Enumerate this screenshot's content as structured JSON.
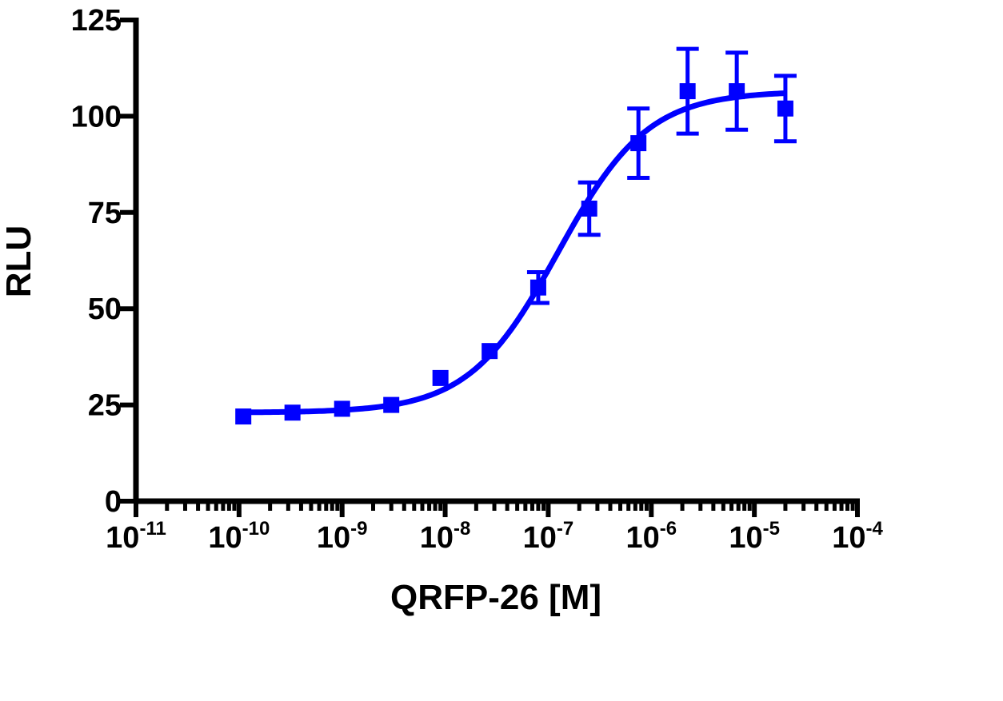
{
  "chart_data": {
    "type": "scatter",
    "xlabel": "QRFP-26 [M]",
    "ylabel": "RLU",
    "xscale": "log",
    "xlim": [
      1e-11,
      0.0001
    ],
    "ylim": [
      0,
      125
    ],
    "grid": false,
    "legend": "none",
    "y_ticks": [
      {
        "value": 0,
        "label": "0"
      },
      {
        "value": 25,
        "label": "25"
      },
      {
        "value": 50,
        "label": "50"
      },
      {
        "value": 75,
        "label": "75"
      },
      {
        "value": 100,
        "label": "100"
      },
      {
        "value": 125,
        "label": "125"
      }
    ],
    "x_ticks": [
      {
        "value": 1e-11,
        "base": "10",
        "exp": "-11"
      },
      {
        "value": 1e-10,
        "base": "10",
        "exp": "-10"
      },
      {
        "value": 1e-09,
        "base": "10",
        "exp": "-9"
      },
      {
        "value": 1e-08,
        "base": "10",
        "exp": "-8"
      },
      {
        "value": 1e-07,
        "base": "10",
        "exp": "-7"
      },
      {
        "value": 1e-06,
        "base": "10",
        "exp": "-6"
      },
      {
        "value": 1e-05,
        "base": "10",
        "exp": "-5"
      },
      {
        "value": 0.0001,
        "base": "10",
        "exp": "-4"
      }
    ],
    "series": [
      {
        "color": "#0000ff",
        "marker": "square",
        "points": [
          {
            "x": 1.1e-10,
            "y": 22,
            "err": 0
          },
          {
            "x": 3.3e-10,
            "y": 23,
            "err": 0
          },
          {
            "x": 1e-09,
            "y": 24,
            "err": 0
          },
          {
            "x": 3e-09,
            "y": 25,
            "err": 0
          },
          {
            "x": 9e-09,
            "y": 32,
            "err": 0
          },
          {
            "x": 2.7e-08,
            "y": 39,
            "err": 0
          },
          {
            "x": 8e-08,
            "y": 55.5,
            "err": 4
          },
          {
            "x": 2.5e-07,
            "y": 76,
            "err": 6.8
          },
          {
            "x": 7.5e-07,
            "y": 93,
            "err": 9
          },
          {
            "x": 2.25e-06,
            "y": 106.5,
            "err": 11
          },
          {
            "x": 6.75e-06,
            "y": 106.5,
            "err": 10
          },
          {
            "x": 2e-05,
            "y": 102,
            "err": 8.5
          }
        ],
        "fit": {
          "model": "sigmoidal dose-response",
          "bottom": 23,
          "top": 106.5,
          "ec50": 1.25e-07,
          "hill": 1
        }
      }
    ]
  }
}
